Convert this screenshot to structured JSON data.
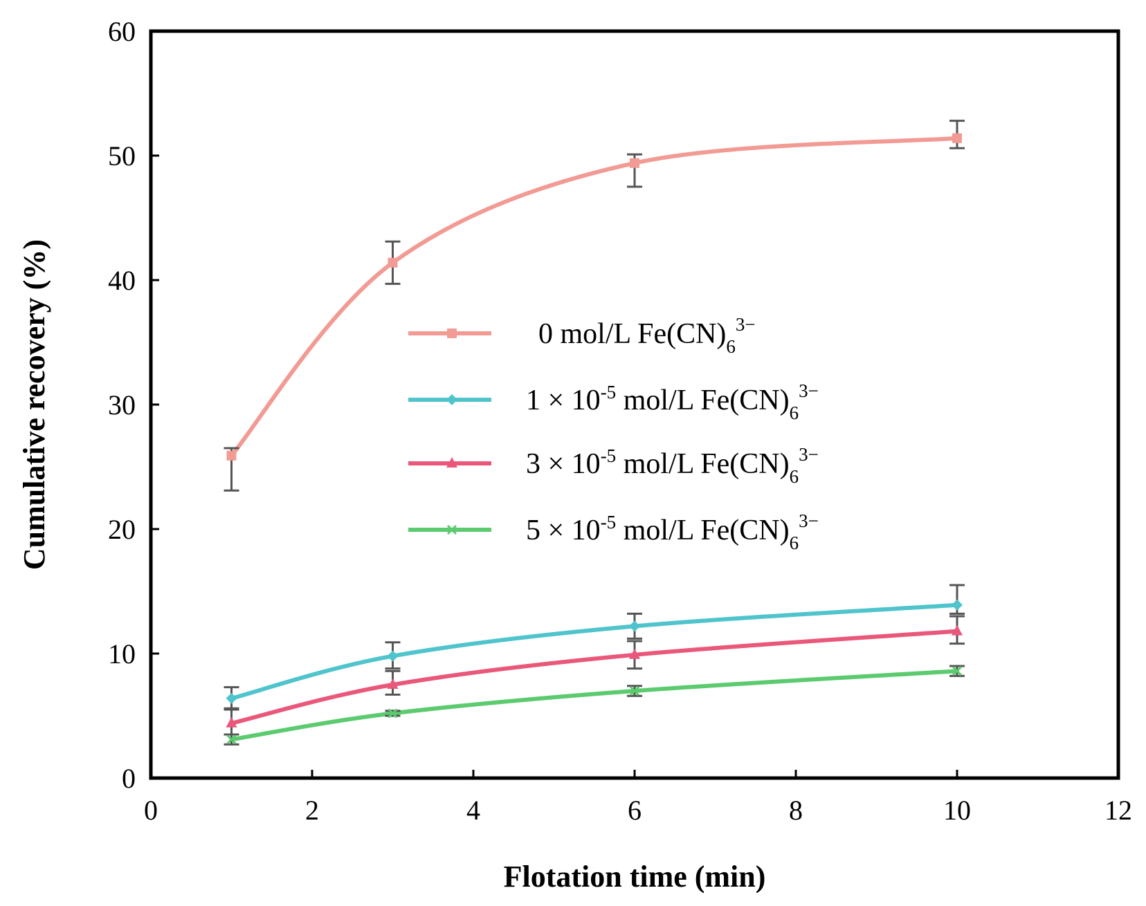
{
  "chart_data": {
    "type": "line",
    "title": "",
    "xlabel": "Flotation time (min)",
    "ylabel": "Cumulative recovery (%)",
    "xlim": [
      0,
      12
    ],
    "ylim": [
      0,
      60
    ],
    "xticks": [
      "0",
      "2",
      "4",
      "6",
      "8",
      "10",
      "12"
    ],
    "yticks": [
      "0",
      "10",
      "20",
      "30",
      "40",
      "50",
      "60"
    ],
    "grid": false,
    "legend_position": "center",
    "x": [
      1,
      3,
      6,
      10
    ],
    "series": [
      {
        "name": "0 mol/L Fe(CN)6 3−",
        "label_main": "0 mol/L Fe(CN)",
        "label_sub": "6",
        "label_sup": "3−",
        "color": "#f29a94",
        "marker": "square",
        "values": [
          25.9,
          41.4,
          49.4,
          51.4
        ],
        "err_low": [
          2.8,
          1.7,
          1.9,
          0.8
        ],
        "err_high": [
          0.6,
          1.7,
          0.7,
          1.4
        ]
      },
      {
        "name": "1 × 10-5 mol/L Fe(CN)6 3−",
        "label_main": "1 × 10",
        "label_exp": "-5",
        "label_rest": " mol/L Fe(CN)",
        "label_sub": "6",
        "label_sup": "3−",
        "color": "#4fc4cc",
        "marker": "diamond",
        "values": [
          6.4,
          9.8,
          12.2,
          13.9
        ],
        "err_low": [
          0.8,
          1.0,
          1.0,
          0.7
        ],
        "err_high": [
          0.9,
          1.1,
          1.0,
          1.6
        ]
      },
      {
        "name": "3 × 10-5 mol/L Fe(CN)6 3−",
        "label_main": "3 × 10",
        "label_exp": "-5",
        "label_rest": " mol/L Fe(CN)",
        "label_sub": "6",
        "label_sup": "3−",
        "color": "#e9587a",
        "marker": "triangle",
        "values": [
          4.4,
          7.5,
          9.9,
          11.8
        ],
        "err_low": [
          0.9,
          0.8,
          1.1,
          1.0
        ],
        "err_high": [
          1.1,
          1.1,
          1.1,
          1.2
        ]
      },
      {
        "name": "5 × 10-5 mol/L Fe(CN)6 3−",
        "label_main": "5 × 10",
        "label_exp": "-5",
        "label_rest": " mol/L Fe(CN)",
        "label_sub": "6",
        "label_sup": "3−",
        "color": "#5ccb6f",
        "marker": "x",
        "values": [
          3.1,
          5.2,
          7.0,
          8.6
        ],
        "err_low": [
          0.4,
          0.2,
          0.4,
          0.4
        ],
        "err_high": [
          0.4,
          0.2,
          0.4,
          0.4
        ]
      }
    ]
  }
}
